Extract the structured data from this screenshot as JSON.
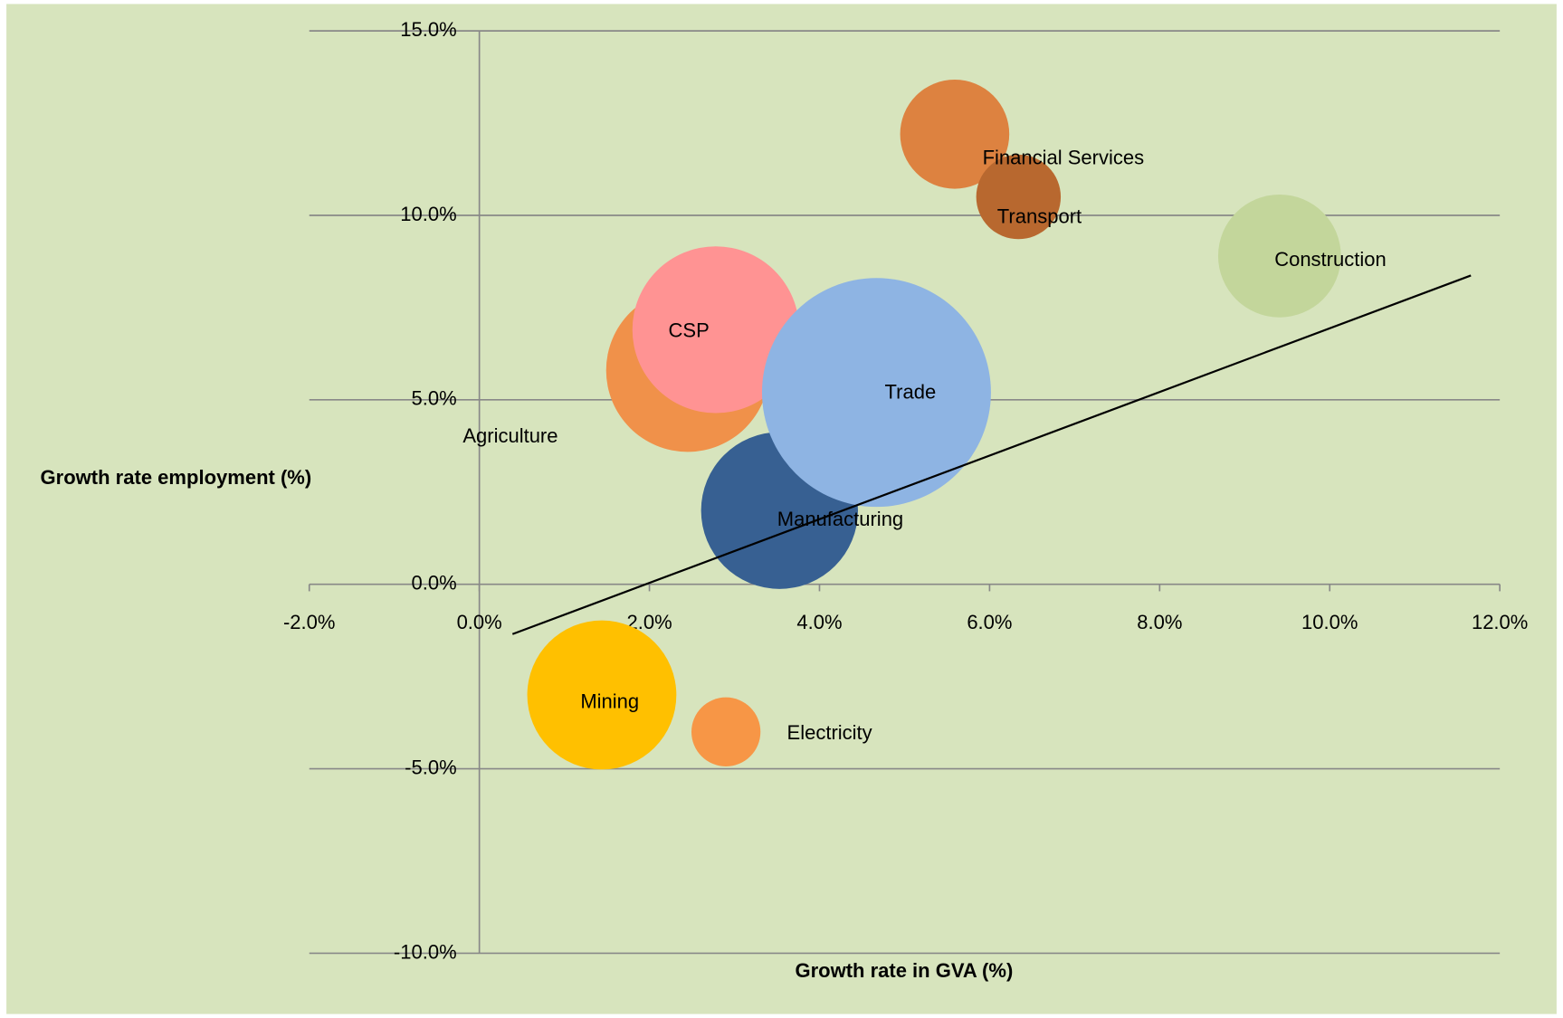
{
  "chart_data": {
    "type": "bubble",
    "x_label": "Growth rate in GVA (%)",
    "y_label": "Growth rate  employment (%)",
    "xlim": [
      -2,
      12
    ],
    "ylim": [
      -10,
      15
    ],
    "xticks": [
      {
        "value": -2,
        "label": "-2.0%"
      },
      {
        "value": 0,
        "label": "0.0%"
      },
      {
        "value": 2,
        "label": "2.0%"
      },
      {
        "value": 4,
        "label": "4.0%"
      },
      {
        "value": 6,
        "label": "6.0%"
      },
      {
        "value": 8,
        "label": "8.0%"
      },
      {
        "value": 10,
        "label": "10.0%"
      },
      {
        "value": 12,
        "label": "12.0%"
      }
    ],
    "yticks": [
      {
        "value": -10,
        "label": "-10.0%"
      },
      {
        "value": -5,
        "label": "-5.0%"
      },
      {
        "value": 0,
        "label": "0.0%"
      },
      {
        "value": 5,
        "label": "5.0%"
      },
      {
        "value": 10,
        "label": "10.0%"
      },
      {
        "value": 15,
        "label": "15.0%"
      }
    ],
    "grid": true,
    "background": "#d7e4bd",
    "series": [
      {
        "name": "Agriculture",
        "color": "#f0914a",
        "x": [
          2.45
        ],
        "values": [
          5.8
        ],
        "sizes": [
          67
        ]
      },
      {
        "name": "CSP",
        "color": "#ff9393",
        "x": [
          2.78
        ],
        "values": [
          6.9
        ],
        "sizes": [
          70
        ]
      },
      {
        "name": "Manufacturing",
        "color": "#376092",
        "x": [
          3.53
        ],
        "values": [
          2.0
        ],
        "sizes": [
          62
        ]
      },
      {
        "name": "Trade",
        "color": "#8eb4e3",
        "x": [
          4.67
        ],
        "values": [
          5.2
        ],
        "sizes": [
          132
        ]
      },
      {
        "name": "Mining",
        "color": "#ffc000",
        "x": [
          1.44
        ],
        "values": [
          -3.0
        ],
        "sizes": [
          56
        ]
      },
      {
        "name": "Electricity",
        "color": "#f79646",
        "x": [
          2.9
        ],
        "values": [
          -4.0
        ],
        "sizes": [
          12
        ]
      },
      {
        "name": "Financial Services",
        "color": "#dd8240",
        "x": [
          5.59
        ],
        "values": [
          12.2
        ],
        "sizes": [
          30
        ]
      },
      {
        "name": "Transport",
        "color": "#b8682f",
        "x": [
          6.34
        ],
        "values": [
          10.5
        ],
        "sizes": [
          18
        ]
      },
      {
        "name": "Construction",
        "color": "#c3d69b",
        "x": [
          9.41
        ],
        "values": [
          8.9
        ],
        "sizes": [
          38
        ]
      }
    ],
    "trendline": {
      "color": "#000000",
      "x": [
        0.39,
        11.66
      ],
      "values": [
        -1.35,
        8.37
      ]
    }
  }
}
